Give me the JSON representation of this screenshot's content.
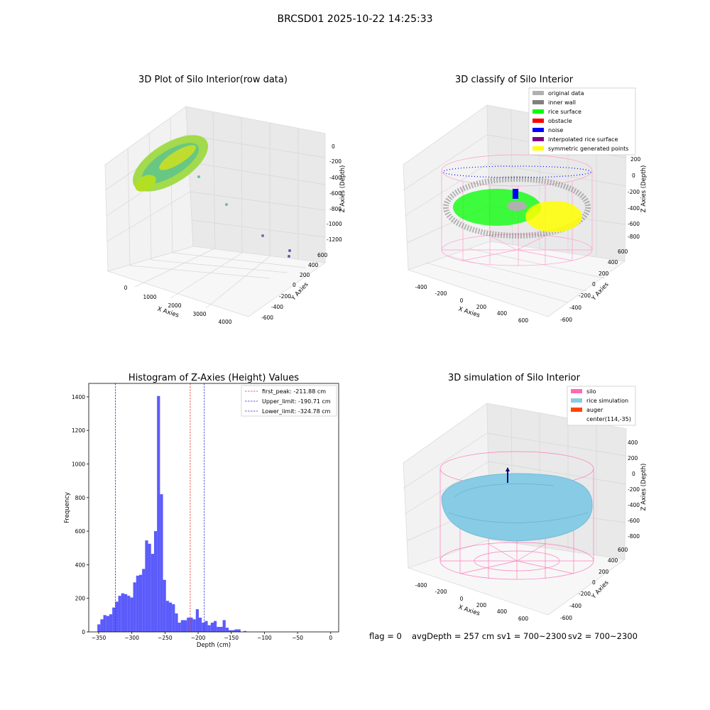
{
  "figure": {
    "suptitle": "BRCSD01 2025-10-22 14:25:33",
    "footer": {
      "flag": "flag = 0",
      "avg": "avgDepth = 257 cm",
      "sv1": "sv1 = 700~2300",
      "sv2": "sv2 = 700~2300"
    }
  },
  "colors": {
    "hist_bar": "#5252fb",
    "first_peak": "#e03030",
    "limit": "#2a2ad8",
    "silo": "#ff69b4",
    "rice_sim": "#87cbe4",
    "auger": "#ff4500",
    "rice_surface": "#00ff00",
    "noise": "#0000ff",
    "inner_wall": "#808080",
    "original": "#b0b0b0",
    "interp": "#800080",
    "symmetric": "#ffff00"
  },
  "chart_data": [
    {
      "type": "scatter3d",
      "title": "3D Plot of Silo Interior(row data)",
      "xlabel": "X Axies",
      "ylabel": "Y Axies",
      "zlabel": "Z Axies (Depth)",
      "xticks": [
        "0",
        "1000",
        "2000",
        "3000",
        "4000"
      ],
      "yticks": [
        "-600",
        "-400",
        "-200",
        "0",
        "200",
        "400",
        "600"
      ],
      "zticks": [
        "0",
        "-200",
        "-400",
        "-600",
        "-800",
        "-1000",
        "-1200"
      ],
      "outliers": [
        {
          "x": 900,
          "y": 0,
          "z": -400
        },
        {
          "x": 1700,
          "y": 0,
          "z": -700
        },
        {
          "x": 3400,
          "y": 0,
          "z": -1000
        },
        {
          "x": 4000,
          "y": 300,
          "z": -1050
        },
        {
          "x": 4000,
          "y": 400,
          "z": -1100
        }
      ]
    },
    {
      "type": "scatter3d",
      "title": "3D classify of Silo Interior",
      "xlabel": "X Axies",
      "ylabel": "Y Axies",
      "zlabel": "Z Axies (Depth)",
      "xticks": [
        "-400",
        "-200",
        "0",
        "200",
        "400",
        "600"
      ],
      "yticks": [
        "-600",
        "-400",
        "-200",
        "0",
        "200",
        "400",
        "600"
      ],
      "zticks": [
        "200",
        "0",
        "-200",
        "-400",
        "-600",
        "-800"
      ],
      "legend": [
        {
          "label": "original data",
          "color": "#b0b0b0"
        },
        {
          "label": "inner wall",
          "color": "#808080"
        },
        {
          "label": "rice surface",
          "color": "#00ff00"
        },
        {
          "label": "obstacle",
          "color": "#ff0000"
        },
        {
          "label": "noise",
          "color": "#0000ff"
        },
        {
          "label": "interpolated rice surface",
          "color": "#800080"
        },
        {
          "label": "symmetric generated points",
          "color": "#ffff00"
        }
      ],
      "legend_loc": "upper right"
    },
    {
      "type": "bar",
      "title": "Histogram of Z-Axies (Height) Values",
      "xlabel": "Depth (cm)",
      "ylabel": "Frequency",
      "xlim": [
        -365,
        12
      ],
      "ylim": [
        0,
        1480
      ],
      "xticks": [
        -350,
        -300,
        -250,
        -200,
        -150,
        -100,
        -50,
        0
      ],
      "yticks": [
        0,
        200,
        400,
        600,
        800,
        1000,
        1200,
        1400
      ],
      "bin_width": 4.5,
      "bins_start": [
        -352,
        -347.5,
        -343,
        -338.5,
        -334,
        -329.5,
        -325,
        -320.5,
        -316,
        -311.5,
        -307,
        -302.5,
        -298,
        -293.5,
        -289,
        -284.5,
        -280,
        -275.5,
        -271,
        -266.5,
        -262,
        -257.5,
        -253,
        -248.5,
        -244,
        -239.5,
        -235,
        -230.5,
        -226,
        -221.5,
        -217,
        -212.5,
        -208,
        -203.5,
        -199,
        -194.5,
        -190,
        -185.5,
        -181,
        -176.5,
        -172,
        -167.5,
        -163,
        -158.5,
        -154,
        -149.5,
        -145,
        -140.5,
        -136,
        -131.5,
        -127,
        -122.5,
        -118,
        -113.5,
        -109,
        -104.5,
        -100,
        -95.5,
        -91,
        -86.5,
        -82,
        -77.5,
        -73,
        -68.5,
        -64,
        -59.5,
        -55,
        -50.5,
        -46,
        -41.5,
        -37,
        -32.5,
        -28,
        -23.5,
        -19,
        -14.5,
        -10,
        -5.5,
        -1
      ],
      "counts": [
        45,
        75,
        100,
        95,
        105,
        145,
        180,
        215,
        230,
        225,
        215,
        205,
        295,
        335,
        340,
        375,
        545,
        525,
        465,
        600,
        1405,
        820,
        310,
        185,
        175,
        165,
        110,
        55,
        70,
        70,
        85,
        85,
        75,
        135,
        85,
        55,
        65,
        40,
        55,
        65,
        30,
        30,
        70,
        25,
        10,
        10,
        15,
        15,
        0,
        5,
        0,
        0,
        0,
        0,
        0,
        0,
        0,
        0,
        0,
        0,
        0,
        0,
        0,
        0,
        0,
        0,
        0,
        0,
        0,
        0,
        0,
        0,
        0,
        0,
        0,
        0,
        0,
        0,
        0
      ],
      "vlines": [
        {
          "label": "first_peak: -211.88 cm",
          "x": -211.88,
          "color": "#e03030"
        },
        {
          "label": "Upper_limit: -190.71 cm",
          "x": -190.71,
          "color": "#2a2ad8"
        },
        {
          "label": "Lower_limit: -324.78 cm",
          "x": -324.78,
          "color": "#2a2ad8"
        }
      ],
      "legend_loc": "upper right"
    },
    {
      "type": "surface3d",
      "title": "3D simulation of Silo Interior",
      "xlabel": "X Axies",
      "ylabel": "Y Axies",
      "zlabel": "Z Axies (Depth)",
      "xticks": [
        "-400",
        "-200",
        "0",
        "200",
        "400",
        "600"
      ],
      "yticks": [
        "-600",
        "-400",
        "-200",
        "0",
        "200",
        "400",
        "600"
      ],
      "zticks": [
        "400",
        "200",
        "0",
        "-200",
        "-400",
        "-600",
        "-800"
      ],
      "legend": [
        {
          "label": "silo",
          "color": "#ff69b4"
        },
        {
          "label": "rice simulation",
          "color": "#87cbe4"
        },
        {
          "label": "auger",
          "color": "#ff4500"
        },
        {
          "label": "center(114,-35)",
          "color": ""
        }
      ],
      "legend_loc": "upper right"
    }
  ]
}
